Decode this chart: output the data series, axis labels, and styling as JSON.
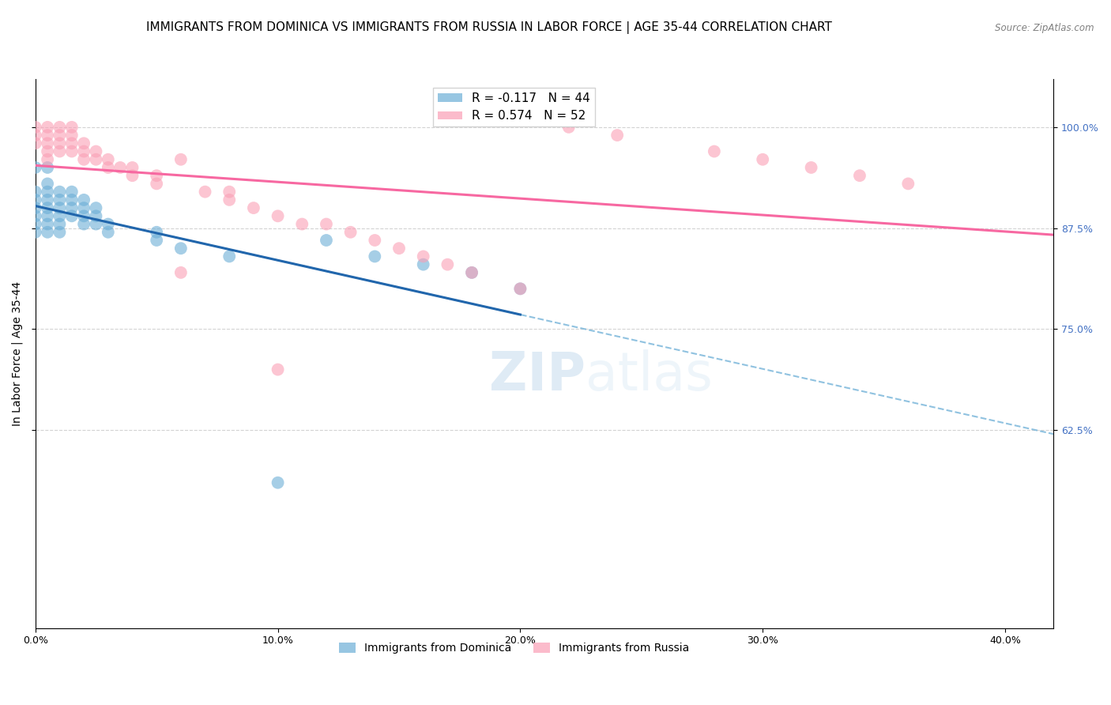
{
  "title": "IMMIGRANTS FROM DOMINICA VS IMMIGRANTS FROM RUSSIA IN LABOR FORCE | AGE 35-44 CORRELATION CHART",
  "source": "Source: ZipAtlas.com",
  "ylabel": "In Labor Force | Age 35-44",
  "x_ticks": [
    "0.0%",
    "10.0%",
    "20.0%",
    "30.0%",
    "40.0%"
  ],
  "x_tick_vals": [
    0.0,
    0.1,
    0.2,
    0.3,
    0.4
  ],
  "y_ticks_right": [
    "100.0%",
    "87.5%",
    "75.0%",
    "62.5%"
  ],
  "y_tick_vals": [
    1.0,
    0.875,
    0.75,
    0.625
  ],
  "xlim": [
    0.0,
    0.42
  ],
  "ylim": [
    0.38,
    1.06
  ],
  "legend_blue_r": "R = -0.117",
  "legend_blue_n": "N = 44",
  "legend_pink_r": "R = 0.574",
  "legend_pink_n": "N = 52",
  "dominica_color": "#6baed6",
  "russia_color": "#fa9fb5",
  "dominica_line_color": "#2166ac",
  "russia_line_color": "#f768a1",
  "dashed_line_color": "#6baed6",
  "watermark_zip": "ZIP",
  "watermark_atlas": "atlas",
  "dominica_x": [
    0.0,
    0.0,
    0.0,
    0.0,
    0.0,
    0.0,
    0.0,
    0.005,
    0.005,
    0.005,
    0.005,
    0.005,
    0.005,
    0.005,
    0.005,
    0.01,
    0.01,
    0.01,
    0.01,
    0.01,
    0.01,
    0.015,
    0.015,
    0.015,
    0.015,
    0.02,
    0.02,
    0.02,
    0.02,
    0.025,
    0.025,
    0.025,
    0.03,
    0.03,
    0.05,
    0.05,
    0.06,
    0.08,
    0.1,
    0.12,
    0.14,
    0.16,
    0.18,
    0.2
  ],
  "dominica_y": [
    0.95,
    0.92,
    0.91,
    0.9,
    0.89,
    0.88,
    0.87,
    0.95,
    0.93,
    0.92,
    0.91,
    0.9,
    0.89,
    0.88,
    0.87,
    0.92,
    0.91,
    0.9,
    0.89,
    0.88,
    0.87,
    0.92,
    0.91,
    0.9,
    0.89,
    0.91,
    0.9,
    0.89,
    0.88,
    0.9,
    0.89,
    0.88,
    0.88,
    0.87,
    0.87,
    0.86,
    0.85,
    0.84,
    0.56,
    0.86,
    0.84,
    0.83,
    0.82,
    0.8
  ],
  "russia_x": [
    0.0,
    0.0,
    0.0,
    0.005,
    0.005,
    0.005,
    0.005,
    0.005,
    0.01,
    0.01,
    0.01,
    0.01,
    0.015,
    0.015,
    0.015,
    0.015,
    0.02,
    0.02,
    0.02,
    0.025,
    0.025,
    0.03,
    0.03,
    0.035,
    0.04,
    0.04,
    0.05,
    0.05,
    0.06,
    0.06,
    0.07,
    0.08,
    0.08,
    0.09,
    0.1,
    0.1,
    0.11,
    0.12,
    0.13,
    0.14,
    0.15,
    0.16,
    0.17,
    0.18,
    0.2,
    0.22,
    0.24,
    0.28,
    0.3,
    0.32,
    0.34,
    0.36
  ],
  "russia_y": [
    1.0,
    0.99,
    0.98,
    1.0,
    0.99,
    0.98,
    0.97,
    0.96,
    1.0,
    0.99,
    0.98,
    0.97,
    1.0,
    0.99,
    0.98,
    0.97,
    0.98,
    0.97,
    0.96,
    0.97,
    0.96,
    0.96,
    0.95,
    0.95,
    0.95,
    0.94,
    0.94,
    0.93,
    0.96,
    0.82,
    0.92,
    0.92,
    0.91,
    0.9,
    0.7,
    0.89,
    0.88,
    0.88,
    0.87,
    0.86,
    0.85,
    0.84,
    0.83,
    0.82,
    0.8,
    1.0,
    0.99,
    0.97,
    0.96,
    0.95,
    0.94,
    0.93
  ],
  "title_fontsize": 11,
  "axis_fontsize": 10,
  "tick_fontsize": 9
}
